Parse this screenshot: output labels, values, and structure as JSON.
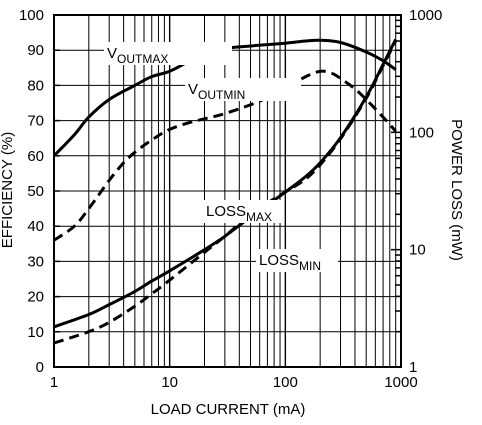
{
  "chart_data": {
    "type": "line",
    "xlabel": "LOAD CURRENT (mA)",
    "ylabel_left": "EFFICIENCY (%)",
    "ylabel_right": "POWER LOSS (mW)",
    "x_scale": "log",
    "xlim": [
      1,
      1000
    ],
    "ylim_left": [
      0,
      100
    ],
    "ylim_right": [
      1,
      1000
    ],
    "y_right_scale": "log",
    "grid": true,
    "x_ticks": [
      "1",
      "10",
      "100",
      "1000"
    ],
    "y_left_ticks": [
      "0",
      "10",
      "20",
      "30",
      "40",
      "50",
      "60",
      "70",
      "80",
      "90",
      "100"
    ],
    "y_right_ticks": [
      "1",
      "10",
      "100",
      "1000"
    ],
    "series": [
      {
        "name": "VOUTMAX",
        "axis": "left",
        "style": "solid",
        "x": [
          1,
          1.5,
          2,
          3,
          5,
          7,
          10,
          15,
          20,
          30,
          50,
          70,
          100,
          150,
          200,
          300,
          500,
          700,
          900
        ],
        "y": [
          60,
          66,
          71,
          76,
          80,
          82.5,
          84,
          87,
          89,
          90.5,
          91.2,
          91.6,
          92,
          92.6,
          92.8,
          92.2,
          89.5,
          87,
          84.5
        ]
      },
      {
        "name": "VOUTMIN",
        "axis": "left",
        "style": "dashed",
        "x": [
          1,
          1.5,
          2,
          3,
          4,
          5,
          7,
          10,
          15,
          20,
          30,
          50,
          70,
          100,
          150,
          200,
          250,
          300,
          400,
          500,
          700,
          900
        ],
        "y": [
          36,
          40,
          45,
          53,
          58,
          61,
          64.5,
          67.5,
          69.5,
          70.5,
          72,
          74.5,
          76.5,
          79,
          82.5,
          84,
          83.5,
          82,
          79,
          76,
          71,
          67
        ]
      },
      {
        "name": "LOSSMAX",
        "axis": "right",
        "style": "solid",
        "x": [
          1,
          2,
          3,
          5,
          7,
          10,
          20,
          30,
          50,
          70,
          100,
          150,
          200,
          300,
          500,
          700,
          900
        ],
        "y": [
          2.2,
          2.8,
          3.4,
          4.4,
          5.4,
          6.6,
          10,
          13,
          19,
          24,
          31,
          42,
          55,
          90,
          200,
          380,
          620
        ]
      },
      {
        "name": "LOSSMIN",
        "axis": "right",
        "style": "dashed",
        "x": [
          1,
          2,
          3,
          5,
          7,
          10,
          20,
          30,
          50,
          70,
          100,
          150,
          200,
          300,
          500,
          700,
          900
        ],
        "y": [
          1.6,
          2.0,
          2.4,
          3.3,
          4.2,
          5.5,
          9.5,
          13,
          20,
          25,
          31,
          40,
          53,
          88,
          195,
          370,
          600
        ]
      }
    ],
    "annotations": [
      {
        "id": "voutmax",
        "main": "V",
        "sub": "OUTMAX"
      },
      {
        "id": "voutmin",
        "main": "V",
        "sub": "OUTMIN"
      },
      {
        "id": "lossmax",
        "main": "LOSS",
        "sub": "MAX"
      },
      {
        "id": "lossmin",
        "main": "LOSS",
        "sub": "MIN"
      }
    ]
  }
}
